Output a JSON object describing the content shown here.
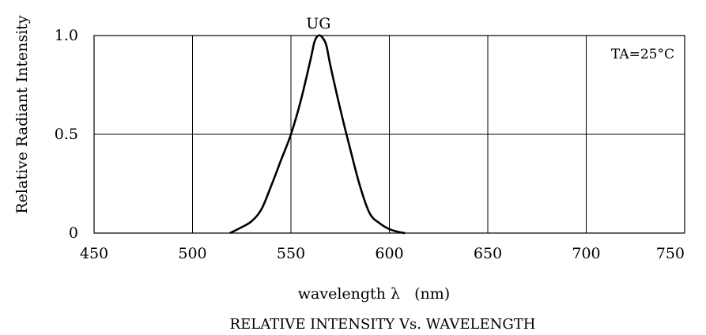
{
  "chart_data": {
    "type": "line",
    "title": "RELATIVE INTENSITY Vs. WAVELENGTH",
    "xlabel": "wavelength λ   (nm)",
    "ylabel": "Relative Radiant Intensity",
    "xlim": [
      450,
      750
    ],
    "ylim": [
      0,
      1.0
    ],
    "x_ticks": [
      "450",
      "500",
      "550",
      "600",
      "650",
      "700",
      "750"
    ],
    "y_ticks": [
      "0",
      "0.5",
      "1.0"
    ],
    "grid": true,
    "annotation": "TA=25°C",
    "series": [
      {
        "name": "UG",
        "x": [
          519,
          525,
          530,
          535,
          540,
          545,
          550,
          555,
          560,
          562,
          564,
          566,
          568,
          570,
          575,
          580,
          585,
          590,
          595,
          600,
          605,
          608
        ],
        "y": [
          0.0,
          0.03,
          0.06,
          0.12,
          0.24,
          0.37,
          0.5,
          0.67,
          0.88,
          0.97,
          1.0,
          0.99,
          0.95,
          0.85,
          0.63,
          0.43,
          0.24,
          0.1,
          0.05,
          0.02,
          0.005,
          0.0
        ]
      }
    ]
  }
}
